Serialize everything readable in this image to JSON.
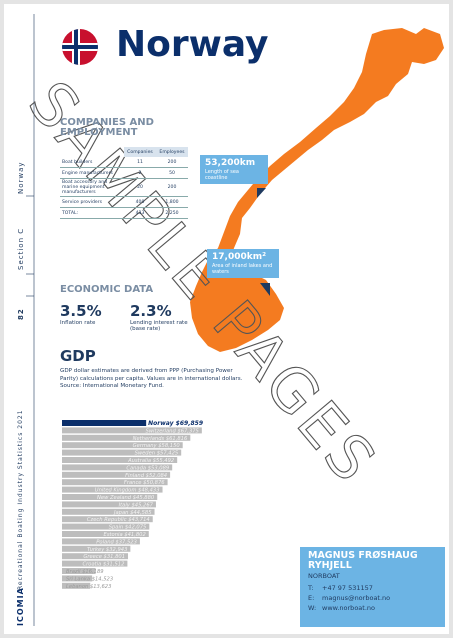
{
  "sidebar": {
    "page_number": "82",
    "section": "Section C",
    "country": "Norway",
    "publication": "Recreational Boating Industry Statistics 2021",
    "logo": "ICOMIA"
  },
  "header": {
    "title": "Norway"
  },
  "companies": {
    "title": "COMPANIES AND EMPLOYMENT",
    "columns": [
      "Companies",
      "Employees"
    ],
    "rows": [
      [
        "Boat builders",
        "11",
        "200"
      ],
      [
        "Engine manufacturers",
        "2",
        "50"
      ],
      [
        "Boat accessory and marine equipment manufacturers",
        "20",
        "200"
      ],
      [
        "Service providers",
        "400",
        "1,800"
      ],
      [
        "TOTAL:",
        "433",
        "2,250"
      ]
    ]
  },
  "map_callouts": [
    {
      "value": "53,200km",
      "label": "Length of sea coastline"
    },
    {
      "value": "17,000km²",
      "label": "Area of inland lakes and waters"
    }
  ],
  "economic": {
    "title": "ECONOMIC DATA",
    "items": [
      {
        "value": "3.5%",
        "label": "Inflation rate"
      },
      {
        "value": "2.3%",
        "label": "Lending interest rate (base rate)"
      }
    ]
  },
  "gdp": {
    "title": "GDP",
    "description": "GDP dollar estimates are derived from PPP (Purchasing Power Parity) calculations per capita. Values are in international dollars. Source: International Monetary Fund.",
    "bars": [
      {
        "label": "Norway $69,859",
        "value": 69859
      },
      {
        "label": "Switzerland $67,375",
        "value": 67375
      },
      {
        "label": "Netherlands $61,816",
        "value": 61816
      },
      {
        "label": "Germany $58,150",
        "value": 58150
      },
      {
        "label": "Sweden $57,425",
        "value": 57425
      },
      {
        "label": "Australia $55,492",
        "value": 55492
      },
      {
        "label": "Canada $53,089",
        "value": 53089
      },
      {
        "label": "Finland $52,084",
        "value": 52084
      },
      {
        "label": "France $50,876",
        "value": 50876
      },
      {
        "label": "United Kingdom $48,433",
        "value": 48433
      },
      {
        "label": "New Zealand $45,880",
        "value": 45880
      },
      {
        "label": "Italy $45,267",
        "value": 45267
      },
      {
        "label": "Japan $44,585",
        "value": 44585
      },
      {
        "label": "Czech Republic $43,714",
        "value": 43714
      },
      {
        "label": "Spain $42,075",
        "value": 42075
      },
      {
        "label": "Estonia $41,802",
        "value": 41802
      },
      {
        "label": "Poland $37,523",
        "value": 37523
      },
      {
        "label": "Turkey $32,943",
        "value": 32943
      },
      {
        "label": "Greece $31,801",
        "value": 31801
      },
      {
        "label": "Croatia $31,512",
        "value": 31512
      },
      {
        "label": "Brazil $16,189",
        "value": 16189
      },
      {
        "label": "Sri Lanka $14,523",
        "value": 14523
      },
      {
        "label": "Lebanon $13,623",
        "value": 13623
      }
    ]
  },
  "contact": {
    "name": "MAGNUS FRØSHAUG RYHJELL",
    "company": "NORBOAT",
    "lines": [
      [
        "T:",
        "+47 97 531157"
      ],
      [
        "E:",
        "magnus@norboat.no"
      ],
      [
        "W:",
        "www.norboat.no"
      ]
    ]
  },
  "watermark": "SAMPLE PAGES"
}
